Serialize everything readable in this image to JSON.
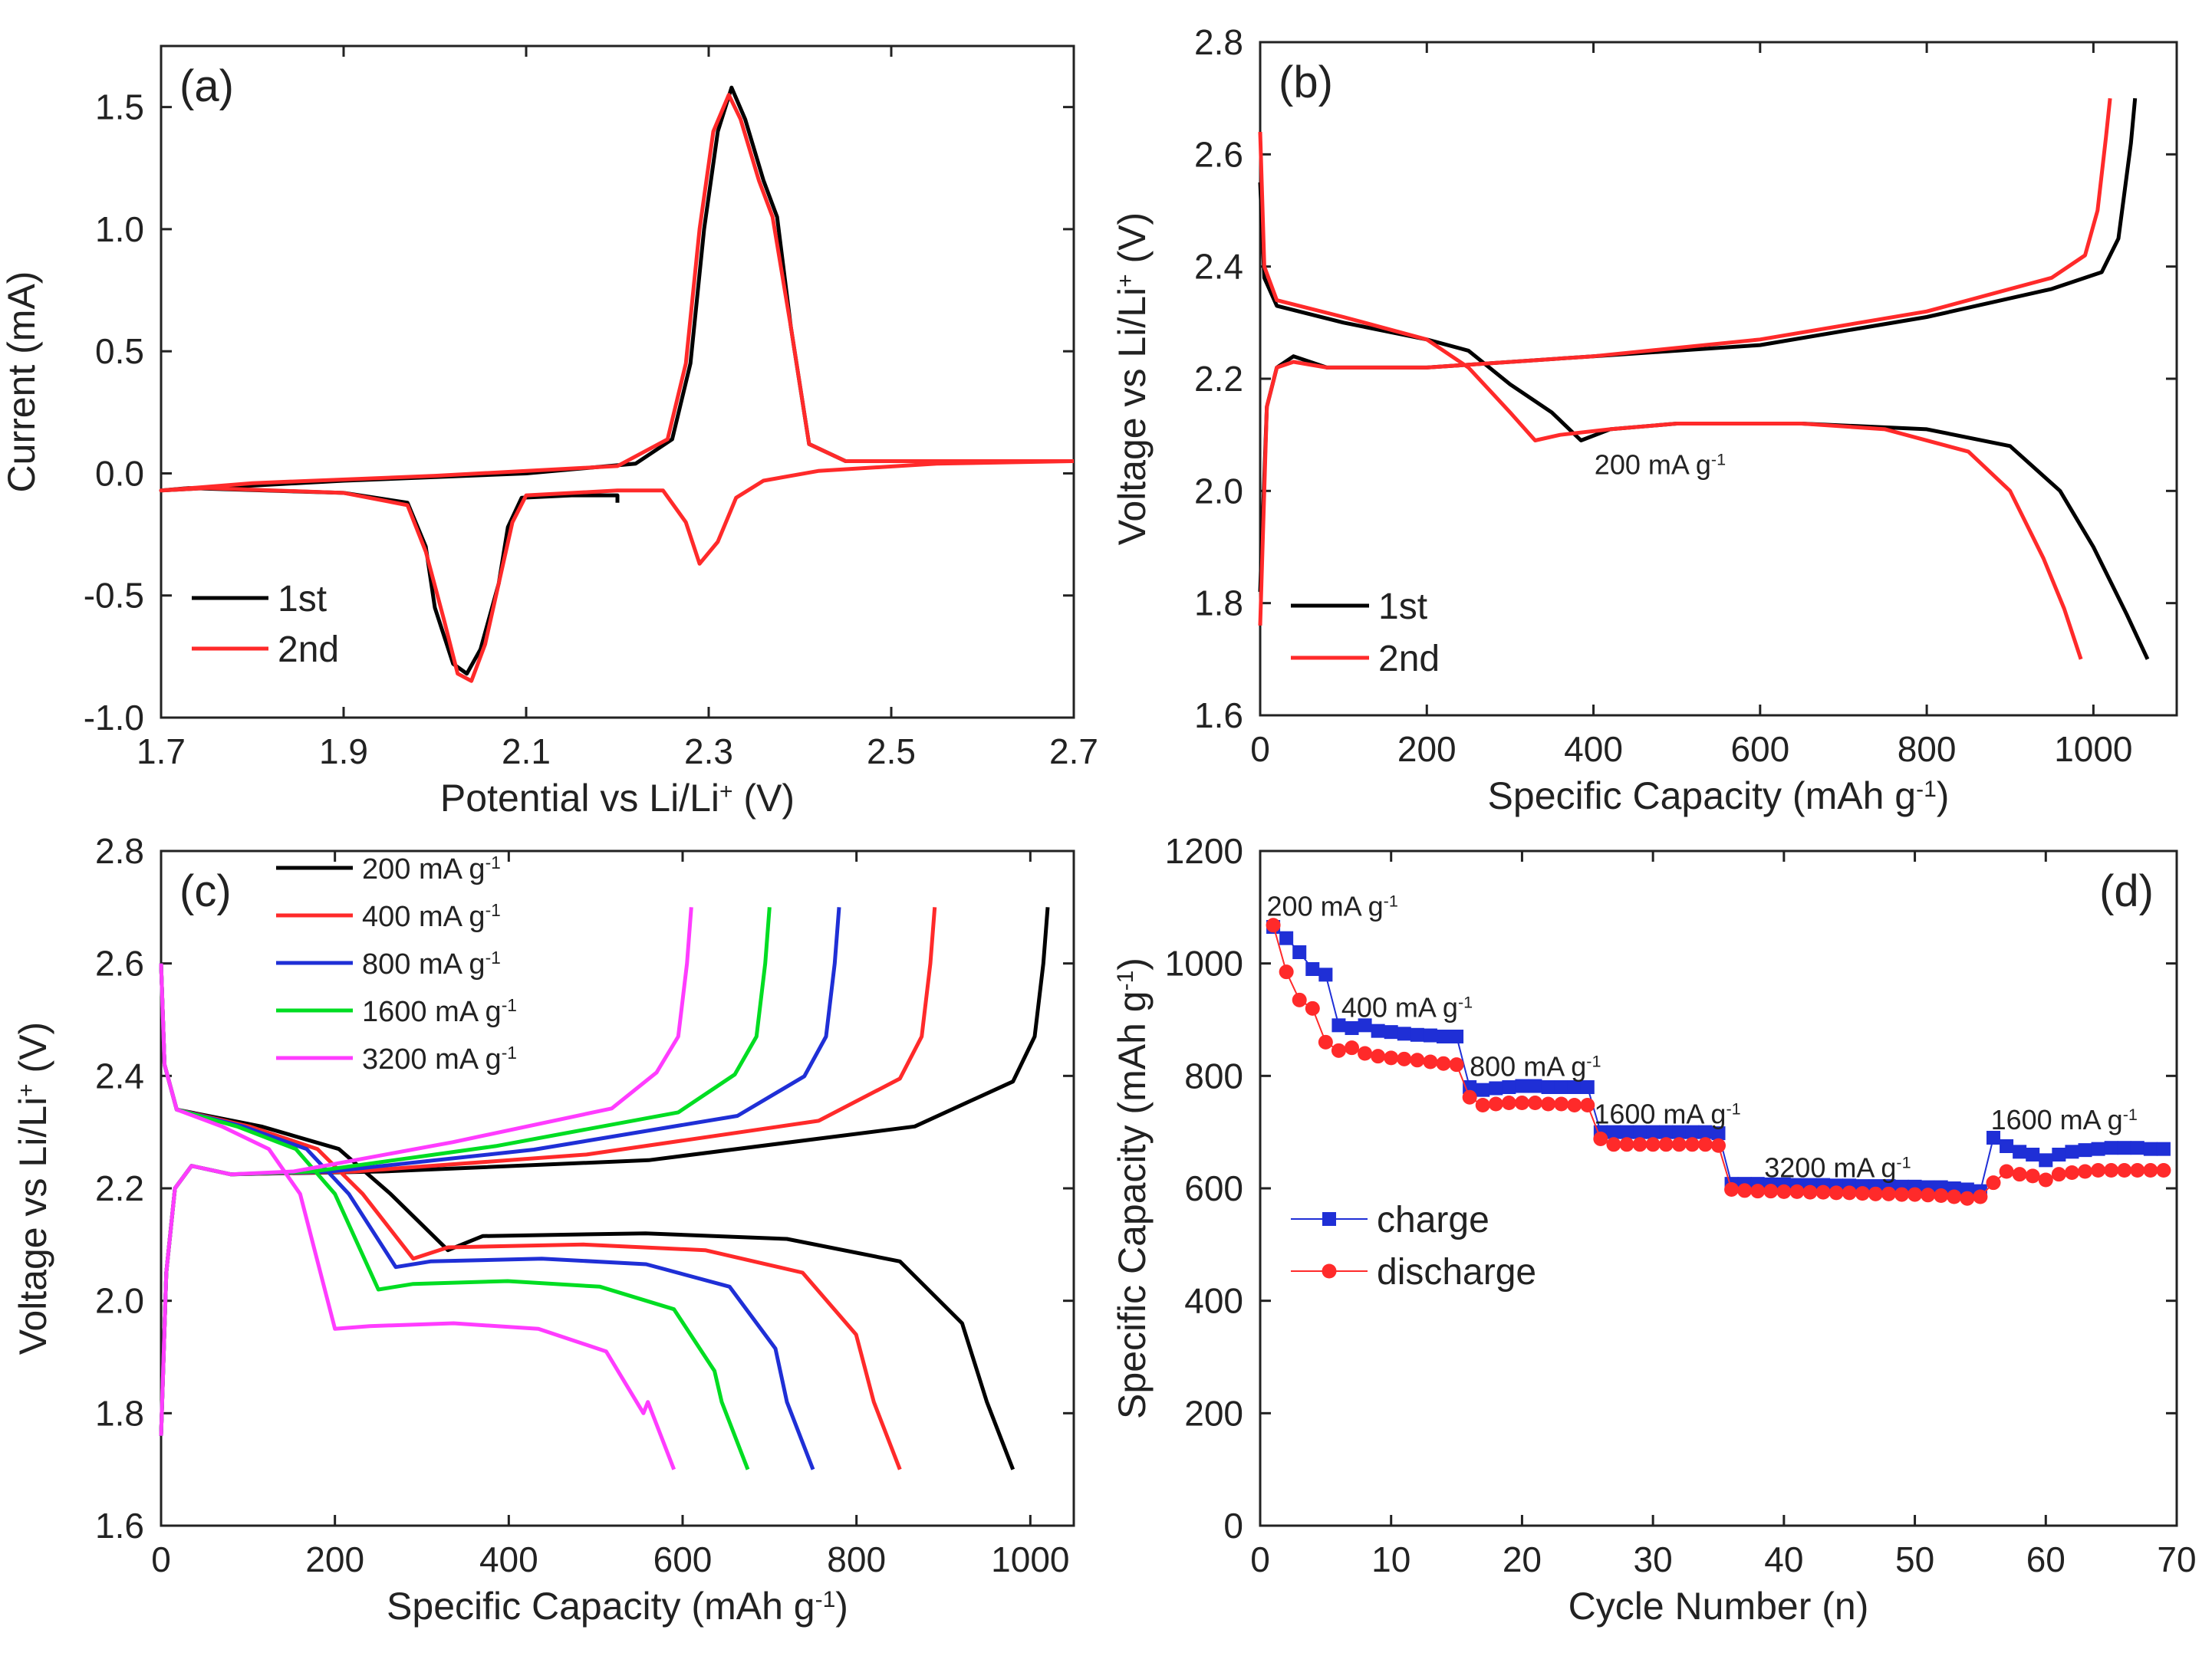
{
  "chart_data": [
    {
      "panel": "(a)",
      "type": "line",
      "xlabel": "Potential vs Li/Li",
      "xlabel_sup": "+",
      "xlabel_unit": " (V)",
      "ylabel": "Current (mA)",
      "xlim": [
        1.7,
        2.7
      ],
      "ylim": [
        -1.0,
        1.75
      ],
      "xticks": [
        1.7,
        1.9,
        2.1,
        2.3,
        2.5,
        2.7
      ],
      "xtick_labels": [
        "1.7",
        "1.9",
        "2.1",
        "2.3",
        "2.5",
        "2.7"
      ],
      "yticks": [
        -1.0,
        -0.5,
        0.0,
        0.5,
        1.0,
        1.5
      ],
      "ytick_labels": [
        "-1.0",
        "-0.5",
        "0.0",
        "0.5",
        "1.0",
        "1.5"
      ],
      "legend": [
        "1st",
        "2nd"
      ],
      "series": [
        {
          "name": "1st",
          "color": "#000000",
          "points": [
            [
              2.7,
              0.05
            ],
            [
              2.45,
              0.05
            ],
            [
              2.41,
              0.12
            ],
            [
              2.39,
              0.6
            ],
            [
              2.375,
              1.05
            ],
            [
              2.36,
              1.2
            ],
            [
              2.34,
              1.45
            ],
            [
              2.325,
              1.58
            ],
            [
              2.31,
              1.4
            ],
            [
              2.295,
              1.0
            ],
            [
              2.28,
              0.45
            ],
            [
              2.26,
              0.14
            ],
            [
              2.22,
              0.04
            ],
            [
              2.1,
              0.0
            ],
            [
              1.9,
              -0.03
            ],
            [
              1.7,
              -0.07
            ],
            [
              1.73,
              -0.06
            ],
            [
              1.9,
              -0.08
            ],
            [
              1.97,
              -0.12
            ],
            [
              1.99,
              -0.3
            ],
            [
              2.0,
              -0.55
            ],
            [
              2.02,
              -0.78
            ],
            [
              2.035,
              -0.82
            ],
            [
              2.05,
              -0.72
            ],
            [
              2.07,
              -0.45
            ],
            [
              2.08,
              -0.22
            ],
            [
              2.095,
              -0.1
            ],
            [
              2.15,
              -0.09
            ],
            [
              2.2,
              -0.09
            ],
            [
              2.2,
              -0.12
            ]
          ]
        },
        {
          "name": "2nd",
          "color": "#ff2a2a",
          "points": [
            [
              2.7,
              0.05
            ],
            [
              2.45,
              0.05
            ],
            [
              2.41,
              0.12
            ],
            [
              2.39,
              0.6
            ],
            [
              2.37,
              1.05
            ],
            [
              2.355,
              1.2
            ],
            [
              2.335,
              1.45
            ],
            [
              2.322,
              1.55
            ],
            [
              2.305,
              1.4
            ],
            [
              2.29,
              1.0
            ],
            [
              2.275,
              0.45
            ],
            [
              2.255,
              0.14
            ],
            [
              2.2,
              0.03
            ],
            [
              2.0,
              -0.01
            ],
            [
              1.8,
              -0.04
            ],
            [
              1.7,
              -0.07
            ],
            [
              1.75,
              -0.06
            ],
            [
              1.9,
              -0.08
            ],
            [
              1.97,
              -0.13
            ],
            [
              1.99,
              -0.32
            ],
            [
              2.01,
              -0.6
            ],
            [
              2.025,
              -0.82
            ],
            [
              2.04,
              -0.85
            ],
            [
              2.055,
              -0.7
            ],
            [
              2.07,
              -0.45
            ],
            [
              2.085,
              -0.2
            ],
            [
              2.1,
              -0.09
            ],
            [
              2.2,
              -0.07
            ],
            [
              2.25,
              -0.07
            ],
            [
              2.275,
              -0.2
            ],
            [
              2.29,
              -0.37
            ],
            [
              2.31,
              -0.28
            ],
            [
              2.33,
              -0.1
            ],
            [
              2.36,
              -0.03
            ],
            [
              2.42,
              0.01
            ],
            [
              2.55,
              0.04
            ],
            [
              2.7,
              0.05
            ]
          ]
        }
      ]
    },
    {
      "panel": "(b)",
      "type": "line",
      "xlabel": "Specific Capacity (mAh g",
      "xlabel_sup": "-1",
      "xlabel_unit": ")",
      "ylabel": "Voltage vs Li/Li",
      "ylabel_sup": "+",
      "ylabel_unit": " (V)",
      "xlim": [
        0,
        1100
      ],
      "ylim": [
        1.6,
        2.8
      ],
      "xticks": [
        0,
        200,
        400,
        600,
        800,
        1000
      ],
      "xtick_labels": [
        "0",
        "200",
        "400",
        "600",
        "800",
        "1000"
      ],
      "yticks": [
        1.6,
        1.8,
        2.0,
        2.2,
        2.4,
        2.6,
        2.8
      ],
      "ytick_labels": [
        "1.6",
        "1.8",
        "2.0",
        "2.2",
        "2.4",
        "2.6",
        "2.8"
      ],
      "legend": [
        "1st",
        "2nd"
      ],
      "annotation": "200 mA g",
      "annotation_sup": "-1",
      "series": [
        {
          "name": "1st",
          "color": "#000000",
          "points": [
            [
              0,
              2.55
            ],
            [
              5,
              2.38
            ],
            [
              20,
              2.33
            ],
            [
              100,
              2.3
            ],
            [
              200,
              2.27
            ],
            [
              250,
              2.25
            ],
            [
              300,
              2.19
            ],
            [
              350,
              2.14
            ],
            [
              385,
              2.09
            ],
            [
              420,
              2.11
            ],
            [
              500,
              2.12
            ],
            [
              650,
              2.12
            ],
            [
              800,
              2.11
            ],
            [
              900,
              2.08
            ],
            [
              960,
              2.0
            ],
            [
              1000,
              1.9
            ],
            [
              1040,
              1.78
            ],
            [
              1065,
              1.7
            ],
            "break",
            [
              0,
              1.82
            ],
            [
              8,
              2.15
            ],
            [
              20,
              2.22
            ],
            [
              40,
              2.24
            ],
            [
              80,
              2.22
            ],
            [
              200,
              2.22
            ],
            [
              400,
              2.24
            ],
            [
              600,
              2.26
            ],
            [
              800,
              2.31
            ],
            [
              950,
              2.36
            ],
            [
              1010,
              2.39
            ],
            [
              1030,
              2.45
            ],
            [
              1045,
              2.62
            ],
            [
              1050,
              2.7
            ]
          ]
        },
        {
          "name": "2nd",
          "color": "#ff2a2a",
          "points": [
            [
              0,
              2.64
            ],
            [
              5,
              2.4
            ],
            [
              20,
              2.34
            ],
            [
              100,
              2.31
            ],
            [
              200,
              2.27
            ],
            [
              250,
              2.22
            ],
            [
              300,
              2.14
            ],
            [
              330,
              2.09
            ],
            [
              360,
              2.1
            ],
            [
              420,
              2.11
            ],
            [
              500,
              2.12
            ],
            [
              650,
              2.12
            ],
            [
              750,
              2.11
            ],
            [
              850,
              2.07
            ],
            [
              900,
              2.0
            ],
            [
              940,
              1.88
            ],
            [
              965,
              1.79
            ],
            [
              985,
              1.7
            ],
            "break",
            [
              0,
              1.76
            ],
            [
              8,
              2.15
            ],
            [
              20,
              2.22
            ],
            [
              40,
              2.23
            ],
            [
              80,
              2.22
            ],
            [
              200,
              2.22
            ],
            [
              400,
              2.24
            ],
            [
              600,
              2.27
            ],
            [
              800,
              2.32
            ],
            [
              950,
              2.38
            ],
            [
              990,
              2.42
            ],
            [
              1005,
              2.5
            ],
            [
              1015,
              2.63
            ],
            [
              1020,
              2.7
            ]
          ]
        }
      ]
    },
    {
      "panel": "(c)",
      "type": "line",
      "xlabel": "Specific Capacity (mAh g",
      "xlabel_sup": "-1",
      "xlabel_unit": ")",
      "ylabel": "Voltage vs Li/Li",
      "ylabel_sup": "+",
      "ylabel_unit": " (V)",
      "xlim": [
        0,
        1050
      ],
      "ylim": [
        1.6,
        2.8
      ],
      "xticks": [
        0,
        200,
        400,
        600,
        800,
        1000
      ],
      "xtick_labels": [
        "0",
        "200",
        "400",
        "600",
        "800",
        "1000"
      ],
      "yticks": [
        1.6,
        1.8,
        2.0,
        2.2,
        2.4,
        2.6,
        2.8
      ],
      "ytick_labels": [
        "1.6",
        "1.8",
        "2.0",
        "2.2",
        "2.4",
        "2.6",
        "2.8"
      ],
      "legend_unit_sup": "-1",
      "series": [
        {
          "name": "200 mA g",
          "color": "#000000",
          "discharge_end": 980,
          "charge_end": 1020,
          "plateau": 2.12,
          "dip": 2.09,
          "dip_x": 330
        },
        {
          "name": "400 mA g",
          "color": "#ff2a2a",
          "discharge_end": 850,
          "charge_end": 890,
          "plateau": 2.1,
          "dip": 2.075,
          "dip_x": 290
        },
        {
          "name": "800 mA g",
          "color": "#1f2fd6",
          "discharge_end": 750,
          "charge_end": 780,
          "plateau": 2.075,
          "dip": 2.06,
          "dip_x": 270
        },
        {
          "name": "1600 mA g",
          "color": "#00dd22",
          "discharge_end": 675,
          "charge_end": 700,
          "plateau": 2.035,
          "dip": 2.02,
          "dip_x": 250
        },
        {
          "name": "3200 mA g",
          "color": "#ff3cff",
          "discharge_end": 590,
          "charge_end": 610,
          "plateau": 1.96,
          "dip": 1.95,
          "dip_x": 200
        }
      ]
    },
    {
      "panel": "(d)",
      "type": "scatter",
      "xlabel": "Cycle Number (n)",
      "ylabel": "Specific Capacity (mAh g",
      "ylabel_sup": "-1",
      "ylabel_unit": ")",
      "xlim": [
        0,
        70
      ],
      "ylim": [
        0,
        1200
      ],
      "xticks": [
        0,
        10,
        20,
        30,
        40,
        50,
        60,
        70
      ],
      "xtick_labels": [
        "0",
        "10",
        "20",
        "30",
        "40",
        "50",
        "60",
        "70"
      ],
      "yticks": [
        0,
        200,
        400,
        600,
        800,
        1000,
        1200
      ],
      "ytick_labels": [
        "0",
        "200",
        "400",
        "600",
        "800",
        "1000",
        "1200"
      ],
      "legend": [
        "charge",
        "discharge"
      ],
      "annotations": [
        {
          "text": "200 mA g",
          "x": 0.5,
          "y": 1085
        },
        {
          "text": "400 mA g",
          "x": 6.2,
          "y": 905
        },
        {
          "text": "800 mA g",
          "x": 16,
          "y": 800
        },
        {
          "text": "1600 mA g",
          "x": 25.5,
          "y": 715
        },
        {
          "text": "3200 mA g",
          "x": 38.5,
          "y": 620
        },
        {
          "text": "1600 mA g",
          "x": 55.8,
          "y": 705
        }
      ],
      "annotation_sup": "-1",
      "series": [
        {
          "name": "charge",
          "color": "#1f2fd6",
          "marker": "square",
          "x": [
            1,
            2,
            3,
            4,
            5,
            6,
            7,
            8,
            9,
            10,
            11,
            12,
            13,
            14,
            15,
            16,
            17,
            18,
            19,
            20,
            21,
            22,
            23,
            24,
            25,
            26,
            27,
            28,
            29,
            30,
            31,
            32,
            33,
            34,
            35,
            36,
            37,
            38,
            39,
            40,
            41,
            42,
            43,
            44,
            45,
            46,
            47,
            48,
            49,
            50,
            51,
            52,
            53,
            54,
            55,
            56,
            57,
            58,
            59,
            60,
            61,
            62,
            63,
            64,
            65,
            66,
            67,
            68,
            69
          ],
          "y": [
            1065,
            1045,
            1020,
            990,
            980,
            890,
            885,
            890,
            880,
            878,
            875,
            873,
            872,
            870,
            870,
            780,
            775,
            778,
            780,
            782,
            782,
            780,
            780,
            780,
            780,
            700,
            700,
            700,
            700,
            700,
            700,
            700,
            700,
            700,
            698,
            608,
            608,
            608,
            607,
            607,
            606,
            606,
            606,
            605,
            605,
            604,
            604,
            604,
            603,
            603,
            602,
            602,
            600,
            598,
            595,
            690,
            675,
            665,
            660,
            650,
            660,
            665,
            668,
            670,
            672,
            672,
            672,
            670,
            670
          ]
        },
        {
          "name": "discharge",
          "color": "#ff2a2a",
          "marker": "circle",
          "x": [
            1,
            2,
            3,
            4,
            5,
            6,
            7,
            8,
            9,
            10,
            11,
            12,
            13,
            14,
            15,
            16,
            17,
            18,
            19,
            20,
            21,
            22,
            23,
            24,
            25,
            26,
            27,
            28,
            29,
            30,
            31,
            32,
            33,
            34,
            35,
            36,
            37,
            38,
            39,
            40,
            41,
            42,
            43,
            44,
            45,
            46,
            47,
            48,
            49,
            50,
            51,
            52,
            53,
            54,
            55,
            56,
            57,
            58,
            59,
            60,
            61,
            62,
            63,
            64,
            65,
            66,
            67,
            68,
            69
          ],
          "y": [
            1068,
            985,
            935,
            920,
            860,
            845,
            850,
            840,
            835,
            832,
            830,
            828,
            825,
            822,
            820,
            762,
            748,
            750,
            752,
            752,
            752,
            750,
            750,
            748,
            748,
            688,
            678,
            678,
            678,
            678,
            678,
            678,
            678,
            678,
            676,
            598,
            596,
            595,
            595,
            594,
            594,
            593,
            593,
            592,
            592,
            591,
            590,
            590,
            589,
            589,
            588,
            587,
            585,
            582,
            585,
            610,
            630,
            625,
            622,
            615,
            625,
            628,
            630,
            632,
            632,
            632,
            632,
            632,
            632
          ]
        }
      ]
    }
  ]
}
